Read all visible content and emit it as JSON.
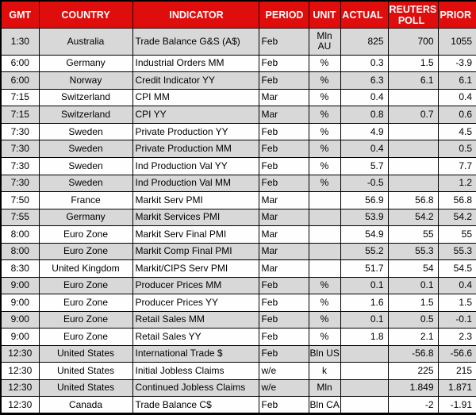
{
  "colors": {
    "header_bg": "#E00D0D",
    "header_text": "#FFFFFF",
    "row_shaded": "#D8D8D8",
    "row_plain": "#FEFEFE",
    "border": "#000000"
  },
  "table": {
    "columns": [
      {
        "key": "gmt",
        "label": "GMT"
      },
      {
        "key": "country",
        "label": "COUNTRY"
      },
      {
        "key": "indicator",
        "label": "INDICATOR"
      },
      {
        "key": "period",
        "label": "PERIOD"
      },
      {
        "key": "unit",
        "label": "UNIT"
      },
      {
        "key": "actual",
        "label": "ACTUAL"
      },
      {
        "key": "poll",
        "label": "REUTERS POLL"
      },
      {
        "key": "prior",
        "label": "PRIOR"
      }
    ],
    "rows": [
      {
        "gmt": "1:30",
        "country": "Australia",
        "indicator": "Trade Balance G&S (A$)",
        "period": "Feb",
        "unit": "Mln AU",
        "actual": "825",
        "poll": "700",
        "prior": "1055"
      },
      {
        "gmt": "6:00",
        "country": "Germany",
        "indicator": "Industrial Orders MM",
        "period": "Feb",
        "unit": "%",
        "actual": "0.3",
        "poll": "1.5",
        "prior": "-3.9"
      },
      {
        "gmt": "6:00",
        "country": "Norway",
        "indicator": "Credit Indicator YY",
        "period": "Feb",
        "unit": "%",
        "actual": "6.3",
        "poll": "6.1",
        "prior": "6.1"
      },
      {
        "gmt": "7:15",
        "country": "Switzerland",
        "indicator": "CPI MM",
        "period": "Mar",
        "unit": "%",
        "actual": "0.4",
        "poll": "",
        "prior": "0.4"
      },
      {
        "gmt": "7:15",
        "country": "Switzerland",
        "indicator": "CPI YY",
        "period": "Mar",
        "unit": "%",
        "actual": "0.8",
        "poll": "0.7",
        "prior": "0.6"
      },
      {
        "gmt": "7:30",
        "country": "Sweden",
        "indicator": "Private Production YY",
        "period": "Feb",
        "unit": "%",
        "actual": "4.9",
        "poll": "",
        "prior": "4.5"
      },
      {
        "gmt": "7:30",
        "country": "Sweden",
        "indicator": "Private Production MM",
        "period": "Feb",
        "unit": "%",
        "actual": "0.4",
        "poll": "",
        "prior": "0.5"
      },
      {
        "gmt": "7:30",
        "country": "Sweden",
        "indicator": "Ind Production Val YY",
        "period": "Feb",
        "unit": "%",
        "actual": "5.7",
        "poll": "",
        "prior": "7.7"
      },
      {
        "gmt": "7:30",
        "country": "Sweden",
        "indicator": "Ind Production Val MM",
        "period": "Feb",
        "unit": "%",
        "actual": "-0.5",
        "poll": "",
        "prior": "1.2"
      },
      {
        "gmt": "7:50",
        "country": "France",
        "indicator": "Markit Serv PMI",
        "period": "Mar",
        "unit": "",
        "actual": "56.9",
        "poll": "56.8",
        "prior": "56.8"
      },
      {
        "gmt": "7:55",
        "country": "Germany",
        "indicator": "Markit Services PMI",
        "period": "Mar",
        "unit": "",
        "actual": "53.9",
        "poll": "54.2",
        "prior": "54.2"
      },
      {
        "gmt": "8:00",
        "country": "Euro Zone",
        "indicator": "Markit Serv Final PMI",
        "period": "Mar",
        "unit": "",
        "actual": "54.9",
        "poll": "55",
        "prior": "55"
      },
      {
        "gmt": "8:00",
        "country": "Euro Zone",
        "indicator": "Markit Comp Final PMI",
        "period": "Mar",
        "unit": "",
        "actual": "55.2",
        "poll": "55.3",
        "prior": "55.3"
      },
      {
        "gmt": "8:30",
        "country": "United Kingdom",
        "indicator": "Markit/CIPS Serv PMI",
        "period": "Mar",
        "unit": "",
        "actual": "51.7",
        "poll": "54",
        "prior": "54.5"
      },
      {
        "gmt": "9:00",
        "country": "Euro Zone",
        "indicator": "Producer Prices MM",
        "period": "Feb",
        "unit": "%",
        "actual": "0.1",
        "poll": "0.1",
        "prior": "0.4"
      },
      {
        "gmt": "9:00",
        "country": "Euro Zone",
        "indicator": "Producer Prices YY",
        "period": "Feb",
        "unit": "%",
        "actual": "1.6",
        "poll": "1.5",
        "prior": "1.5"
      },
      {
        "gmt": "9:00",
        "country": "Euro Zone",
        "indicator": "Retail Sales MM",
        "period": "Feb",
        "unit": "%",
        "actual": "0.1",
        "poll": "0.5",
        "prior": "-0.1"
      },
      {
        "gmt": "9:00",
        "country": "Euro Zone",
        "indicator": "Retail Sales YY",
        "period": "Feb",
        "unit": "%",
        "actual": "1.8",
        "poll": "2.1",
        "prior": "2.3"
      },
      {
        "gmt": "12:30",
        "country": "United States",
        "indicator": "International Trade $",
        "period": "Feb",
        "unit": "Bln US",
        "actual": "",
        "poll": "-56.8",
        "prior": "-56.6"
      },
      {
        "gmt": "12:30",
        "country": "United States",
        "indicator": "Initial Jobless Claims",
        "period": "w/e",
        "unit": "k",
        "actual": "",
        "poll": "225",
        "prior": "215"
      },
      {
        "gmt": "12:30",
        "country": "United States",
        "indicator": "Continued Jobless Claims",
        "period": "w/e",
        "unit": "Mln",
        "actual": "",
        "poll": "1.849",
        "prior": "1.871"
      },
      {
        "gmt": "12:30",
        "country": "Canada",
        "indicator": "Trade Balance C$",
        "period": "Feb",
        "unit": "Bln CA",
        "actual": "",
        "poll": "-2",
        "prior": "-1.91"
      }
    ]
  }
}
